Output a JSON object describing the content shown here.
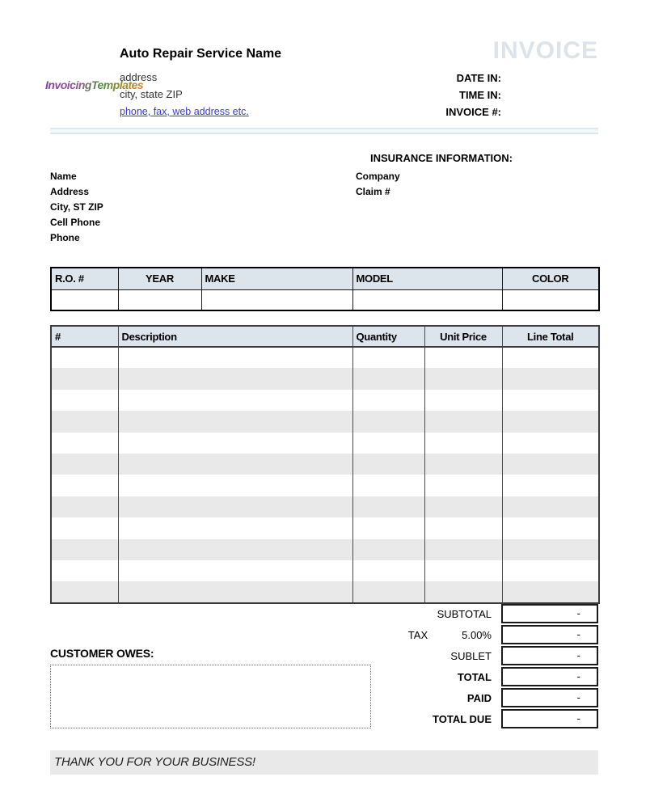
{
  "brand": {
    "logo_text": "InvoicingTemplates"
  },
  "header": {
    "company_name": "Auto Repair Service Name",
    "address_line1": "address",
    "address_line2": "city, state ZIP",
    "contact_link": "phone, fax, web address etc.",
    "invoice_title": "INVOICE",
    "fields": [
      {
        "label": "DATE IN:",
        "value": ""
      },
      {
        "label": "TIME IN:",
        "value": ""
      },
      {
        "label": "INVOICE #:",
        "value": ""
      }
    ]
  },
  "customer": {
    "labels": [
      "Name",
      "Address",
      "City, ST ZIP",
      "Cell Phone",
      "Phone"
    ]
  },
  "insurance": {
    "title": "INSURANCE INFORMATION:",
    "labels": [
      "Company",
      "Claim #"
    ]
  },
  "vehicle_table": {
    "headers": [
      "R.O. #",
      "YEAR",
      "MAKE",
      "MODEL",
      "COLOR"
    ],
    "row_count": 1
  },
  "items_table": {
    "headers": [
      "#",
      "Description",
      "Quantity",
      "Unit Price",
      "Line Total"
    ],
    "row_count": 12
  },
  "totals": {
    "rows": [
      {
        "prefix": "",
        "label": "SUBTOTAL",
        "value": "-"
      },
      {
        "prefix": "TAX",
        "label": "5.00%",
        "value": "-"
      },
      {
        "prefix": "",
        "label": "SUBLET",
        "value": "-"
      },
      {
        "prefix": "",
        "label": "TOTAL",
        "value": "-"
      },
      {
        "prefix": "",
        "label": "PAID",
        "value": "-"
      },
      {
        "prefix": "",
        "label": "TOTAL DUE",
        "value": "-"
      }
    ]
  },
  "customer_owes": {
    "label": "CUSTOMER OWES:",
    "value": ""
  },
  "footer": {
    "message": "THANK YOU FOR YOUR BUSINESS!"
  },
  "colors": {
    "table_header_bg": "#dbe5eb",
    "row_stripe": "#e9e9e9",
    "invoice_title": "#dce3e9",
    "link": "#3a3ad0",
    "logo_gradient": [
      "#7b3fa0",
      "#9a4f9a",
      "#4e8f3a",
      "#e0821f"
    ]
  }
}
